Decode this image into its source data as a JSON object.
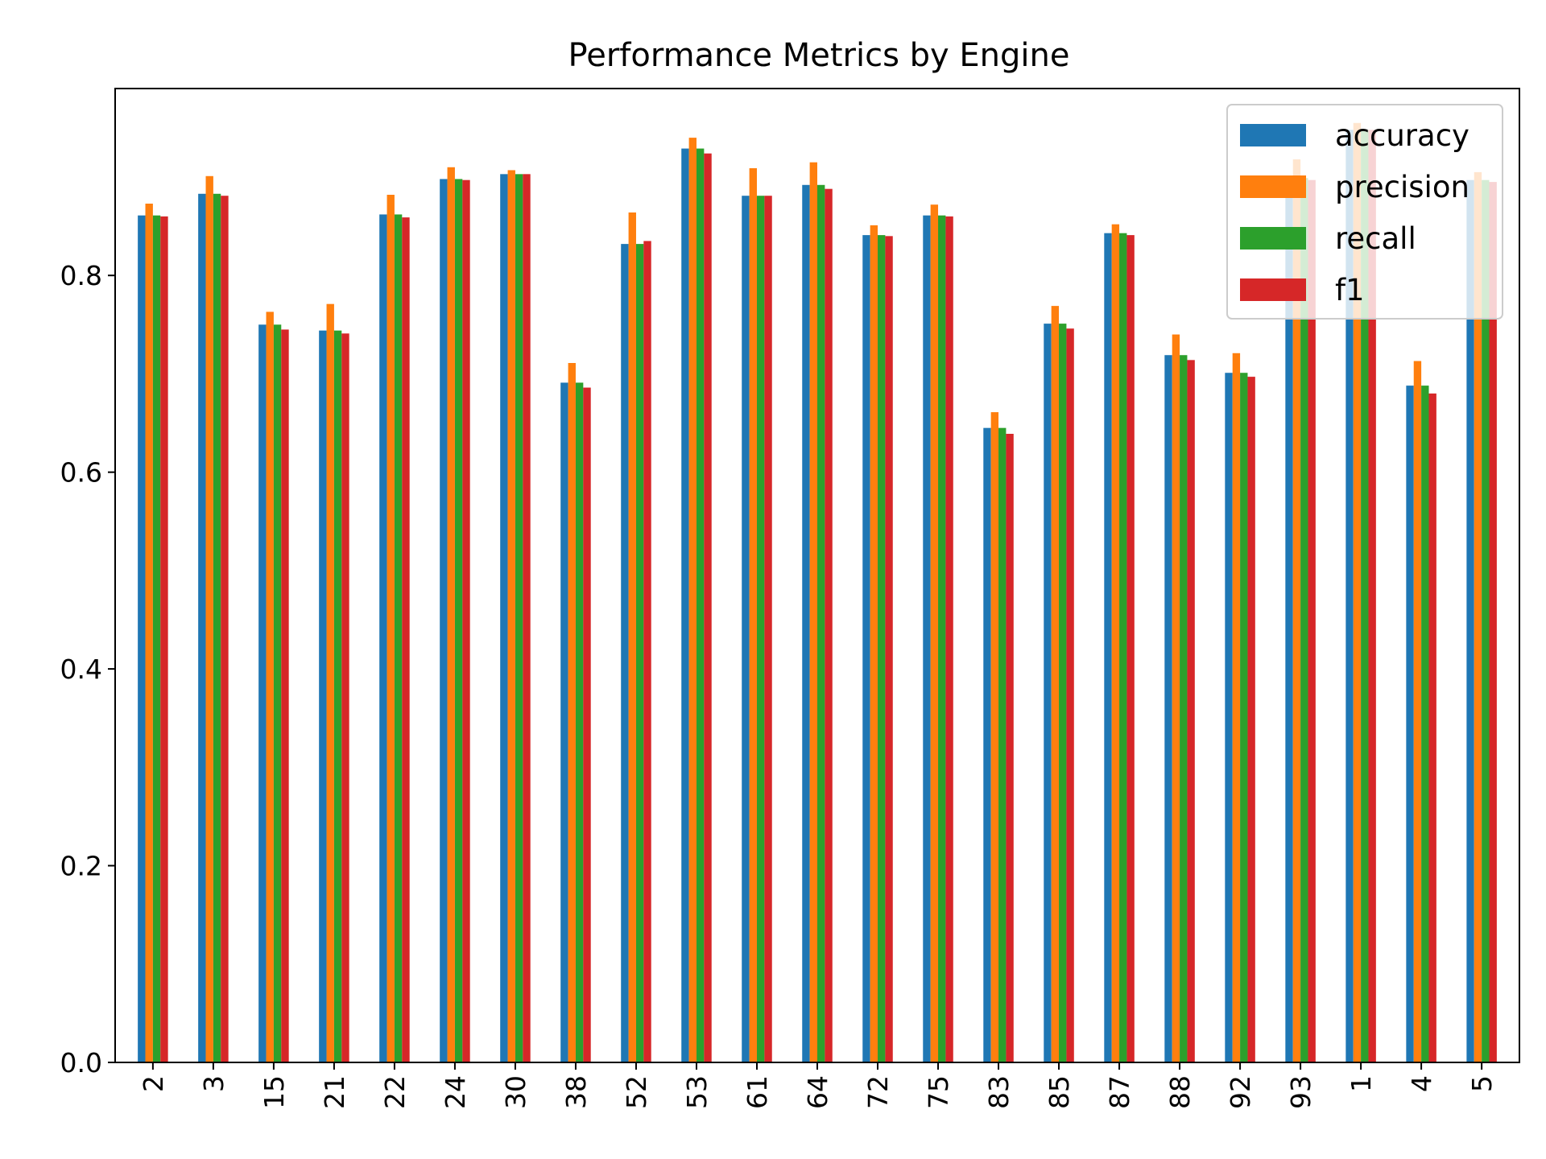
{
  "chart_data": {
    "type": "bar",
    "title": "Performance Metrics by Engine",
    "xlabel": "",
    "ylabel": "",
    "ylim": [
      0,
      0.99
    ],
    "yticks": [
      "0.0",
      "0.2",
      "0.4",
      "0.6",
      "0.8"
    ],
    "ytick_values": [
      0.0,
      0.2,
      0.4,
      0.6,
      0.8
    ],
    "categories": [
      "2",
      "3",
      "15",
      "21",
      "22",
      "24",
      "30",
      "38",
      "52",
      "53",
      "61",
      "64",
      "72",
      "75",
      "83",
      "85",
      "87",
      "88",
      "92",
      "93",
      "1",
      "4",
      "5"
    ],
    "series": [
      {
        "name": "accuracy",
        "color": "#1f77b4",
        "values": [
          0.861,
          0.883,
          0.75,
          0.744,
          0.862,
          0.898,
          0.903,
          0.691,
          0.832,
          0.929,
          0.881,
          0.892,
          0.841,
          0.861,
          0.645,
          0.751,
          0.843,
          0.719,
          0.701,
          0.899,
          0.948,
          0.688,
          0.897
        ]
      },
      {
        "name": "precision",
        "color": "#ff7f0e",
        "values": [
          0.873,
          0.901,
          0.763,
          0.771,
          0.882,
          0.91,
          0.907,
          0.711,
          0.864,
          0.94,
          0.909,
          0.915,
          0.851,
          0.872,
          0.661,
          0.769,
          0.852,
          0.74,
          0.721,
          0.918,
          0.955,
          0.713,
          0.905
        ]
      },
      {
        "name": "recall",
        "color": "#2ca02c",
        "values": [
          0.861,
          0.883,
          0.75,
          0.744,
          0.862,
          0.898,
          0.903,
          0.691,
          0.832,
          0.929,
          0.881,
          0.892,
          0.841,
          0.861,
          0.645,
          0.751,
          0.843,
          0.719,
          0.701,
          0.899,
          0.948,
          0.688,
          0.897
        ]
      },
      {
        "name": "f1",
        "color": "#d62728",
        "values": [
          0.86,
          0.881,
          0.745,
          0.741,
          0.859,
          0.897,
          0.903,
          0.686,
          0.835,
          0.924,
          0.881,
          0.888,
          0.84,
          0.86,
          0.639,
          0.746,
          0.841,
          0.714,
          0.697,
          0.897,
          0.948,
          0.68,
          0.895
        ]
      }
    ],
    "legend": {
      "position": "top-right"
    },
    "grid": false
  }
}
